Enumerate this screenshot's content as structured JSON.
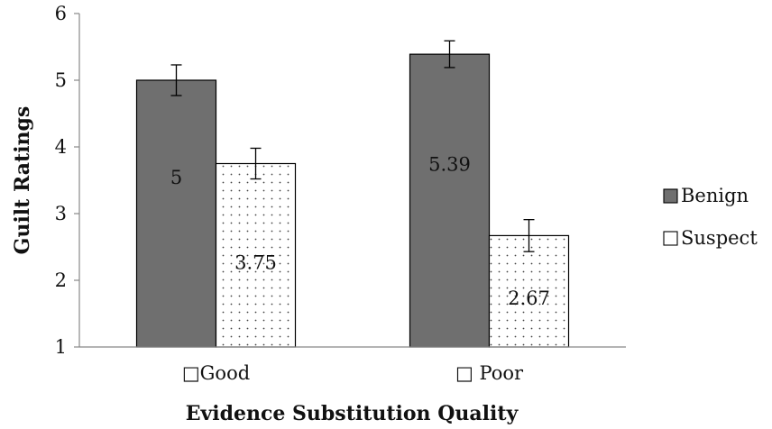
{
  "chart_data": {
    "type": "bar",
    "title": "",
    "xlabel": "Evidence Substitution Quality",
    "ylabel": "Guilt Ratings",
    "ylim": [
      1,
      6
    ],
    "yticks": [
      "1",
      "2",
      "3",
      "4",
      "5",
      "6"
    ],
    "grid": false,
    "legend_position": "right",
    "categories": [
      "□Good",
      "□ Poor"
    ],
    "series": [
      {
        "name": "Benign",
        "values": [
          5,
          5.39
        ],
        "labels": [
          "5",
          "5.39"
        ],
        "error": [
          0.23,
          0.2
        ],
        "color": "#6f6f6f",
        "legend_marker": "■"
      },
      {
        "name": "Suspect",
        "values": [
          3.75,
          2.67
        ],
        "labels": [
          "3.75",
          "2.67"
        ],
        "error": [
          0.23,
          0.24
        ],
        "color": "#ffffff",
        "pattern": "dots",
        "legend_marker": "□"
      }
    ]
  }
}
